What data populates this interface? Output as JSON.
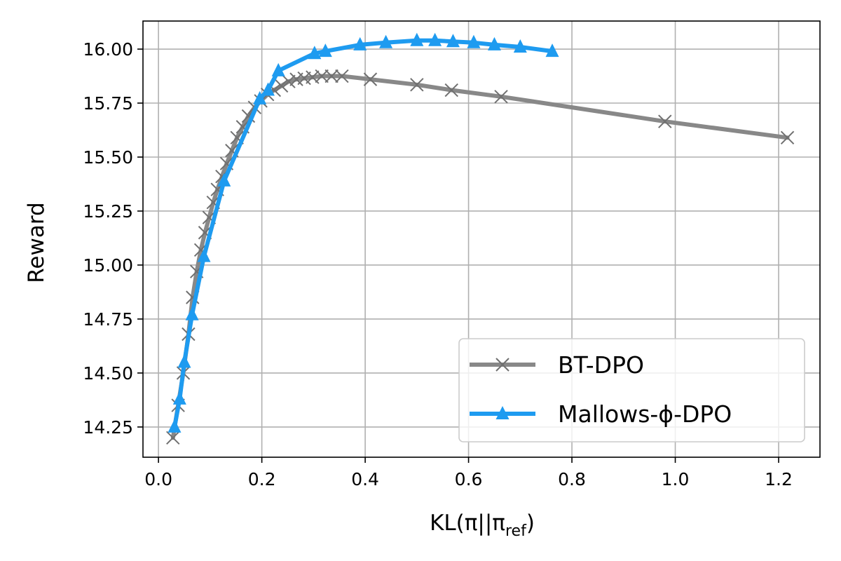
{
  "chart_data": {
    "type": "line",
    "xlabel": "KL(π||π",
    "xlabel_sub": "ref",
    "xlabel_close": ")",
    "ylabel": "Reward",
    "xlim": [
      -0.03,
      1.28
    ],
    "ylim": [
      14.11,
      16.13
    ],
    "grid": true,
    "legend_position": "lower-right",
    "x_ticks": [
      0.0,
      0.2,
      0.4,
      0.6,
      0.8,
      1.0,
      1.2
    ],
    "x_tick_labels": [
      "0.0",
      "0.2",
      "0.4",
      "0.6",
      "0.8",
      "1.0",
      "1.2"
    ],
    "y_ticks": [
      14.25,
      14.5,
      14.75,
      15.0,
      15.25,
      15.5,
      15.75,
      16.0
    ],
    "y_tick_labels": [
      "14.25",
      "14.50",
      "14.75",
      "15.00",
      "15.25",
      "15.50",
      "15.75",
      "16.00"
    ],
    "series": [
      {
        "name": "BT-DPO",
        "color": "#888888",
        "marker": "x",
        "x": [
          0.028,
          0.038,
          0.048,
          0.058,
          0.066,
          0.074,
          0.082,
          0.09,
          0.098,
          0.106,
          0.114,
          0.123,
          0.132,
          0.142,
          0.152,
          0.163,
          0.174,
          0.186,
          0.198,
          0.211,
          0.224,
          0.238,
          0.252,
          0.267,
          0.282,
          0.298,
          0.316,
          0.335,
          0.355,
          0.41,
          0.5,
          0.567,
          0.663,
          0.98,
          1.217
        ],
        "y": [
          14.2,
          14.35,
          14.5,
          14.68,
          14.85,
          14.97,
          15.07,
          15.15,
          15.22,
          15.29,
          15.35,
          15.41,
          15.47,
          15.53,
          15.59,
          15.64,
          15.69,
          15.73,
          15.76,
          15.79,
          15.81,
          15.83,
          15.85,
          15.86,
          15.865,
          15.87,
          15.875,
          15.875,
          15.875,
          15.86,
          15.835,
          15.81,
          15.78,
          15.665,
          15.59
        ]
      },
      {
        "name": "Mallows-ϕ-DPO",
        "color": "#1e9bf0",
        "marker": "^",
        "x": [
          0.031,
          0.041,
          0.05,
          0.065,
          0.088,
          0.127,
          0.196,
          0.212,
          0.232,
          0.302,
          0.323,
          0.39,
          0.44,
          0.5,
          0.535,
          0.57,
          0.61,
          0.65,
          0.7,
          0.762
        ],
        "y": [
          14.25,
          14.38,
          14.55,
          14.77,
          15.04,
          15.39,
          15.77,
          15.81,
          15.9,
          15.98,
          15.99,
          16.02,
          16.03,
          16.04,
          16.04,
          16.035,
          16.03,
          16.02,
          16.01,
          15.99
        ]
      }
    ]
  }
}
